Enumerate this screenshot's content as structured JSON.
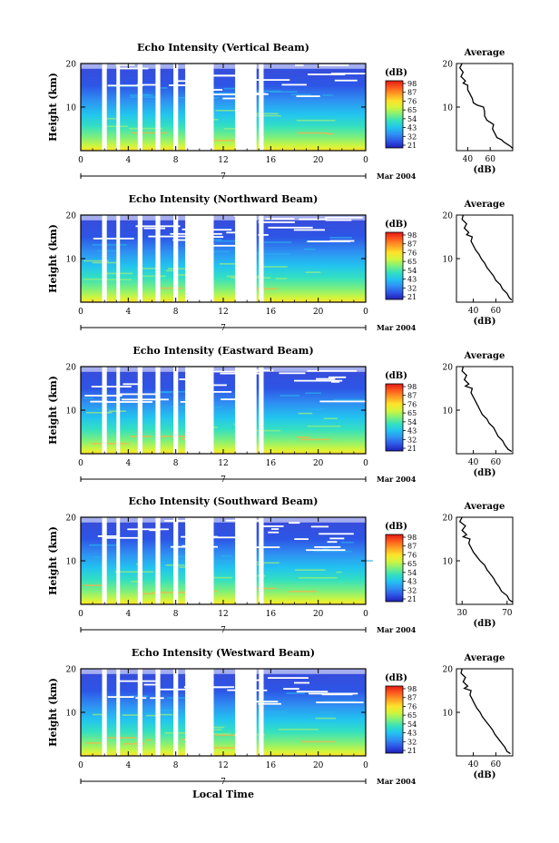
{
  "figure": {
    "xlabel": "Local Time",
    "date_label": "Mar 2004",
    "day_label": "7",
    "profile_title": "Average",
    "unit_label": "(dB)",
    "ylabel": "Height (km)"
  },
  "colorbar": {
    "ticks": [
      "98",
      "87",
      "76",
      "65",
      "54",
      "43",
      "32",
      "21"
    ],
    "colors": [
      "#1f1fb4",
      "#2d55e6",
      "#2f8ff2",
      "#22c3f0",
      "#33e0c0",
      "#7ff07a",
      "#d2f53c",
      "#ffe22a",
      "#ffa024",
      "#ff5a1e",
      "#e01a14"
    ]
  },
  "panels": [
    {
      "title": "Echo Intensity (Vertical Beam)",
      "colorbar_ticks": [
        "98",
        "87",
        "76",
        "65",
        "54",
        "43",
        "32",
        "21"
      ],
      "avg_xticks": [
        "40",
        "60"
      ],
      "avg_xrange": [
        30,
        80
      ],
      "profile": [
        [
          80,
          0.5
        ],
        [
          78,
          1
        ],
        [
          75,
          1.5
        ],
        [
          72,
          2
        ],
        [
          70,
          2.5
        ],
        [
          66,
          3
        ],
        [
          64,
          4
        ],
        [
          62,
          5
        ],
        [
          63,
          6
        ],
        [
          57,
          7
        ],
        [
          55,
          8
        ],
        [
          55,
          9
        ],
        [
          54,
          10
        ],
        [
          48,
          10.5
        ],
        [
          45,
          11
        ],
        [
          44,
          12
        ],
        [
          42,
          13
        ],
        [
          40,
          14
        ],
        [
          40,
          15
        ],
        [
          36,
          15.5
        ],
        [
          38,
          16
        ],
        [
          34,
          17
        ],
        [
          36,
          18
        ],
        [
          33,
          19
        ],
        [
          35,
          20
        ]
      ]
    },
    {
      "title": "Echo Intensity (Northward Beam)",
      "colorbar_ticks": [
        "98",
        "87",
        "76",
        "65",
        "54",
        "43",
        "32",
        "21"
      ],
      "avg_xticks": [
        "40",
        "60"
      ],
      "avg_xrange": [
        25,
        75
      ],
      "profile": [
        [
          74,
          0.5
        ],
        [
          72,
          1
        ],
        [
          70,
          2
        ],
        [
          66,
          3
        ],
        [
          64,
          4
        ],
        [
          60,
          5
        ],
        [
          58,
          6
        ],
        [
          55,
          7
        ],
        [
          52,
          8
        ],
        [
          50,
          9
        ],
        [
          47,
          10
        ],
        [
          45,
          11
        ],
        [
          42,
          12
        ],
        [
          40,
          13
        ],
        [
          38,
          14
        ],
        [
          39,
          15
        ],
        [
          34,
          15.5
        ],
        [
          36,
          16
        ],
        [
          32,
          17
        ],
        [
          34,
          18
        ],
        [
          30,
          19
        ],
        [
          31,
          20
        ]
      ]
    },
    {
      "title": "Echo Intensity (Eastward Beam)",
      "colorbar_ticks": [
        "98",
        "87",
        "76",
        "65",
        "54",
        "43",
        "32",
        "21"
      ],
      "avg_xticks": [
        "40",
        "60"
      ],
      "avg_xrange": [
        25,
        75
      ],
      "profile": [
        [
          74,
          0.5
        ],
        [
          71,
          1
        ],
        [
          68,
          2
        ],
        [
          66,
          3
        ],
        [
          62,
          4
        ],
        [
          60,
          5
        ],
        [
          58,
          6
        ],
        [
          54,
          7
        ],
        [
          52,
          8
        ],
        [
          48,
          9
        ],
        [
          46,
          10
        ],
        [
          44,
          11
        ],
        [
          42,
          12
        ],
        [
          40,
          13
        ],
        [
          38,
          14
        ],
        [
          39,
          15
        ],
        [
          33,
          15.5
        ],
        [
          36,
          16
        ],
        [
          32,
          17
        ],
        [
          34,
          18
        ],
        [
          30,
          19
        ],
        [
          31,
          20
        ]
      ]
    },
    {
      "title": "Echo Intensity (Southward Beam)",
      "colorbar_ticks": [
        "98",
        "87",
        "76",
        "65",
        "54",
        "43",
        "32",
        "21"
      ],
      "avg_xticks": [
        "30",
        "70"
      ],
      "avg_xrange": [
        25,
        75
      ],
      "profile": [
        [
          75,
          0.5
        ],
        [
          72,
          1
        ],
        [
          70,
          2
        ],
        [
          65,
          3
        ],
        [
          63,
          4
        ],
        [
          60,
          5
        ],
        [
          58,
          6
        ],
        [
          55,
          7
        ],
        [
          52,
          8
        ],
        [
          50,
          9
        ],
        [
          46,
          10
        ],
        [
          43,
          11
        ],
        [
          40,
          12
        ],
        [
          38,
          13
        ],
        [
          36,
          14
        ],
        [
          37,
          15
        ],
        [
          31,
          15.5
        ],
        [
          34,
          16
        ],
        [
          30,
          17
        ],
        [
          33,
          18
        ],
        [
          28,
          19
        ],
        [
          30,
          20
        ]
      ]
    },
    {
      "title": "Echo Intensity (Westward Beam)",
      "colorbar_ticks": [
        "98",
        "87",
        "76",
        "65",
        "54",
        "43",
        "32",
        "21"
      ],
      "avg_xticks": [
        "40",
        "60"
      ],
      "avg_xrange": [
        25,
        75
      ],
      "profile": [
        [
          73,
          0.5
        ],
        [
          70,
          1
        ],
        [
          68,
          2
        ],
        [
          65,
          3
        ],
        [
          62,
          4
        ],
        [
          59,
          5
        ],
        [
          57,
          6
        ],
        [
          54,
          7
        ],
        [
          51,
          8
        ],
        [
          48,
          9
        ],
        [
          46,
          10
        ],
        [
          43,
          11
        ],
        [
          41,
          12
        ],
        [
          39,
          13
        ],
        [
          37,
          14
        ],
        [
          38,
          15
        ],
        [
          32,
          15.5
        ],
        [
          35,
          16
        ],
        [
          31,
          17
        ],
        [
          33,
          18
        ],
        [
          29,
          19
        ],
        [
          30,
          20
        ]
      ]
    }
  ],
  "chart_data": [
    {
      "type": "heatmap",
      "title": "Echo Intensity (Vertical Beam)",
      "xlabel": "",
      "ylabel": "Height (km)",
      "xticks": [
        "0",
        "4",
        "8",
        "12",
        "16",
        "20",
        "0"
      ],
      "yticks": [
        "10",
        "20"
      ],
      "xlim": [
        0,
        24
      ],
      "ylim": [
        0,
        20
      ],
      "colorbar_label": "(dB)",
      "colorbar_range": [
        21,
        98
      ],
      "no_data_hours": [
        [
          1.8,
          2.2
        ],
        [
          3.0,
          3.3
        ],
        [
          4.8,
          5.2
        ],
        [
          6.3,
          6.7
        ],
        [
          7.8,
          8.2
        ],
        [
          8.8,
          11.2
        ],
        [
          13.0,
          14.8
        ],
        [
          15.0,
          15.4
        ]
      ]
    },
    {
      "type": "heatmap",
      "title": "Echo Intensity (Northward Beam)",
      "xlabel": "",
      "ylabel": "Height (km)",
      "xticks": [
        "0",
        "4",
        "8",
        "12",
        "16",
        "20",
        "0"
      ],
      "yticks": [
        "10",
        "20"
      ],
      "xlim": [
        0,
        24
      ],
      "ylim": [
        0,
        20
      ],
      "colorbar_label": "(dB)",
      "colorbar_range": [
        21,
        98
      ],
      "no_data_hours": [
        [
          1.8,
          2.2
        ],
        [
          3.0,
          3.3
        ],
        [
          4.8,
          5.2
        ],
        [
          6.3,
          6.7
        ],
        [
          7.8,
          8.2
        ],
        [
          8.8,
          11.2
        ],
        [
          13.0,
          14.8
        ],
        [
          15.0,
          15.4
        ]
      ]
    },
    {
      "type": "heatmap",
      "title": "Echo Intensity (Eastward Beam)",
      "xlabel": "",
      "ylabel": "Height (km)",
      "xticks": [
        "0",
        "4",
        "8",
        "12",
        "16",
        "20",
        "0"
      ],
      "yticks": [
        "10",
        "20"
      ],
      "xlim": [
        0,
        24
      ],
      "ylim": [
        0,
        20
      ],
      "colorbar_label": "(dB)",
      "colorbar_range": [
        21,
        98
      ],
      "no_data_hours": [
        [
          1.8,
          2.2
        ],
        [
          3.0,
          3.3
        ],
        [
          4.8,
          5.2
        ],
        [
          6.3,
          6.7
        ],
        [
          7.8,
          8.2
        ],
        [
          8.8,
          11.2
        ],
        [
          13.0,
          14.8
        ],
        [
          15.0,
          15.4
        ]
      ]
    },
    {
      "type": "heatmap",
      "title": "Echo Intensity (Southward Beam)",
      "xlabel": "",
      "ylabel": "Height (km)",
      "xticks": [
        "0",
        "4",
        "8",
        "12",
        "16",
        "20",
        "0"
      ],
      "yticks": [
        "10",
        "20"
      ],
      "xlim": [
        0,
        24
      ],
      "ylim": [
        0,
        20
      ],
      "colorbar_label": "(dB)",
      "colorbar_range": [
        21,
        98
      ],
      "no_data_hours": [
        [
          1.8,
          2.2
        ],
        [
          3.0,
          3.3
        ],
        [
          4.8,
          5.2
        ],
        [
          6.3,
          6.7
        ],
        [
          7.8,
          8.2
        ],
        [
          8.8,
          11.2
        ],
        [
          13.0,
          14.8
        ],
        [
          15.0,
          15.4
        ]
      ]
    },
    {
      "type": "heatmap",
      "title": "Echo Intensity (Westward Beam)",
      "xlabel": "Local Time",
      "ylabel": "Height (km)",
      "xticks": [
        "0",
        "4",
        "8",
        "12",
        "16",
        "20",
        "0"
      ],
      "yticks": [
        "10",
        "20"
      ],
      "xlim": [
        0,
        24
      ],
      "ylim": [
        0,
        20
      ],
      "colorbar_label": "(dB)",
      "colorbar_range": [
        21,
        98
      ],
      "no_data_hours": [
        [
          1.8,
          2.2
        ],
        [
          3.0,
          3.3
        ],
        [
          4.8,
          5.2
        ],
        [
          6.3,
          6.7
        ],
        [
          7.8,
          8.2
        ],
        [
          8.8,
          11.2
        ],
        [
          13.0,
          14.8
        ],
        [
          15.0,
          15.4
        ]
      ]
    }
  ]
}
